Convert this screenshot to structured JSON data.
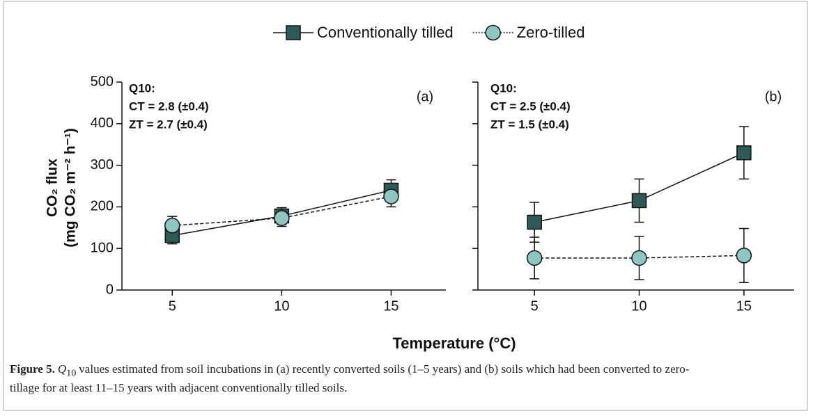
{
  "chart_data": [
    {
      "type": "line",
      "panel_label": "(a)",
      "annotations": [
        "Q10:",
        "CT = 2.8 (±0.4)",
        "ZT = 2.7 (±0.4)"
      ],
      "ylabel": [
        "CO₂ flux",
        "(mg CO₂ m⁻² h⁻¹)"
      ],
      "x": [
        5,
        10,
        15
      ],
      "xlim": [
        2.7,
        17.5
      ],
      "xticks": [
        5,
        10,
        15
      ],
      "ylim": [
        0,
        500
      ],
      "yticks": [
        0,
        100,
        200,
        300,
        400,
        500
      ],
      "show_ytick_labels": true,
      "series": [
        {
          "name": "Conventionally tilled",
          "color": "#2e5a56",
          "marker": "square",
          "dashed": false,
          "values": [
            131,
            178,
            240
          ],
          "errors": [
            20,
            20,
            25
          ]
        },
        {
          "name": "Zero-tilled",
          "color": "#8ec6c1",
          "marker": "circle",
          "dashed": true,
          "values": [
            155,
            173,
            225
          ],
          "errors": [
            22,
            20,
            25
          ]
        }
      ]
    },
    {
      "type": "line",
      "panel_label": "(b)",
      "annotations": [
        "Q10:",
        "CT = 2.5 (±0.4)",
        "ZT = 1.5 (±0.4)"
      ],
      "x": [
        5,
        10,
        15
      ],
      "xlim": [
        2.3,
        17.4
      ],
      "xticks": [
        5,
        10,
        15
      ],
      "ylim": [
        0,
        500
      ],
      "yticks": [
        0,
        100,
        200,
        300,
        400,
        500
      ],
      "show_ytick_labels": false,
      "series": [
        {
          "color": "#2e5a56",
          "marker": "square",
          "dashed": false,
          "values": [
            163,
            215,
            330
          ],
          "errors": [
            48,
            52,
            63
          ]
        },
        {
          "color": "#8ec6c1",
          "marker": "circle",
          "dashed": true,
          "values": [
            77,
            77,
            83
          ],
          "errors": [
            50,
            52,
            65
          ]
        }
      ]
    }
  ],
  "xlabel": "Temperature (°C)",
  "caption": {
    "label": "Figure 5.",
    "symbol": "Q",
    "symbol_sub": "10",
    "text": "values estimated from soil incubations in (a) recently converted soils (1–5 years) and (b) soils which had been converted to zero-tillage for at least 11–15 years with adjacent conventionally tilled soils."
  }
}
